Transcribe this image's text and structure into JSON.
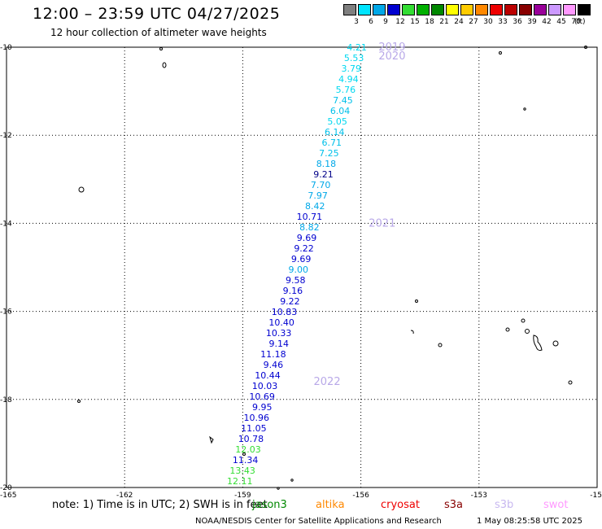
{
  "header": {
    "title": "12:00 – 23:59 UTC 04/27/2025",
    "subtitle": "12 hour collection of altimeter wave heights"
  },
  "legend": {
    "unit": "(ft)",
    "items": [
      {
        "label": "3",
        "color": "#7f7f7f"
      },
      {
        "label": "6",
        "color": "#00e5ff"
      },
      {
        "label": "9",
        "color": "#00a8e8"
      },
      {
        "label": "12",
        "color": "#0000d0"
      },
      {
        "label": "15",
        "color": "#33dd33"
      },
      {
        "label": "18",
        "color": "#00b000"
      },
      {
        "label": "21",
        "color": "#008800"
      },
      {
        "label": "24",
        "color": "#ffff00"
      },
      {
        "label": "27",
        "color": "#ffcc00"
      },
      {
        "label": "30",
        "color": "#ff8800"
      },
      {
        "label": "33",
        "color": "#ee0000"
      },
      {
        "label": "36",
        "color": "#bb0000"
      },
      {
        "label": "39",
        "color": "#880000"
      },
      {
        "label": "42",
        "color": "#990099"
      },
      {
        "label": "45",
        "color": "#cc99ff"
      },
      {
        "label": "70",
        "color": "#ff99ff"
      },
      {
        "label": "",
        "color": "#000000"
      }
    ]
  },
  "axes": {
    "lat_labels": [
      "-10",
      "-12",
      "-14",
      "-16",
      "-18",
      "-20"
    ],
    "lon_labels": [
      "-165",
      "-162",
      "-159",
      "-156",
      "-153",
      "-15"
    ]
  },
  "track": {
    "years": [
      {
        "label": "2019",
        "lat": -10.0
      },
      {
        "label": "2020",
        "lat": -10.2
      },
      {
        "label": "2021",
        "lat": -14.0
      },
      {
        "label": "2022",
        "lat": -17.6
      }
    ],
    "points": [
      {
        "v": "4.21",
        "c": "#00d8f0"
      },
      {
        "v": "5.53",
        "c": "#00d8f0"
      },
      {
        "v": "3.79",
        "c": "#00d8f0"
      },
      {
        "v": "4.94",
        "c": "#00d8f0"
      },
      {
        "v": "5.76",
        "c": "#00d8f0"
      },
      {
        "v": "7.45",
        "c": "#00c0ea"
      },
      {
        "v": "6.04",
        "c": "#00c0ea"
      },
      {
        "v": "5.05",
        "c": "#00d8f0"
      },
      {
        "v": "6.14",
        "c": "#00c0ea"
      },
      {
        "v": "6.71",
        "c": "#00c0ea"
      },
      {
        "v": "7.25",
        "c": "#00c0ea"
      },
      {
        "v": "8.18",
        "c": "#00a8e8"
      },
      {
        "v": "9.21",
        "c": "#000088"
      },
      {
        "v": "7.70",
        "c": "#00a8e8"
      },
      {
        "v": "7.97",
        "c": "#00a8e8"
      },
      {
        "v": "8.42",
        "c": "#00a8e8"
      },
      {
        "v": "10.71",
        "c": "#0000d0"
      },
      {
        "v": "8.82",
        "c": "#00a8e8"
      },
      {
        "v": "9.69",
        "c": "#0000d0"
      },
      {
        "v": "9.22",
        "c": "#0000d0"
      },
      {
        "v": "9.69",
        "c": "#0000d0"
      },
      {
        "v": "9.00",
        "c": "#00a8e8"
      },
      {
        "v": "9.58",
        "c": "#0000d0"
      },
      {
        "v": "9.16",
        "c": "#0000d0"
      },
      {
        "v": "9.22",
        "c": "#0000d0"
      },
      {
        "v": "10.83",
        "c": "#0000d0"
      },
      {
        "v": "10.40",
        "c": "#0000d0"
      },
      {
        "v": "10.33",
        "c": "#0000d0"
      },
      {
        "v": "9.14",
        "c": "#0000d0"
      },
      {
        "v": "11.18",
        "c": "#0000d0"
      },
      {
        "v": "9.46",
        "c": "#0000d0"
      },
      {
        "v": "10.44",
        "c": "#0000d0"
      },
      {
        "v": "10.03",
        "c": "#0000d0"
      },
      {
        "v": "10.69",
        "c": "#0000d0"
      },
      {
        "v": "9.95",
        "c": "#0000d0"
      },
      {
        "v": "10.96",
        "c": "#0000d0"
      },
      {
        "v": "11.05",
        "c": "#0000d0"
      },
      {
        "v": "10.78",
        "c": "#0000d0"
      },
      {
        "v": "12.03",
        "c": "#33dd33"
      },
      {
        "v": "11.34",
        "c": "#0000d0"
      },
      {
        "v": "13.43",
        "c": "#33dd33"
      },
      {
        "v": "12.11",
        "c": "#33dd33"
      }
    ]
  },
  "footer": {
    "note": "note: 1) Time is in UTC; 2) SWH is in feet",
    "satellites": [
      {
        "name": "jason3",
        "color": "#008800"
      },
      {
        "name": "altika",
        "color": "#ff8800"
      },
      {
        "name": "cryosat",
        "color": "#ee0000"
      },
      {
        "name": "s3a",
        "color": "#880000"
      },
      {
        "name": "s3b",
        "color": "#c8b8f0"
      },
      {
        "name": "swot",
        "color": "#ff99ff"
      }
    ],
    "credit": "NOAA/NESDIS Center for Satellite Applications and Research",
    "timestamp": "1 May 08:25:58 UTC 2025"
  }
}
